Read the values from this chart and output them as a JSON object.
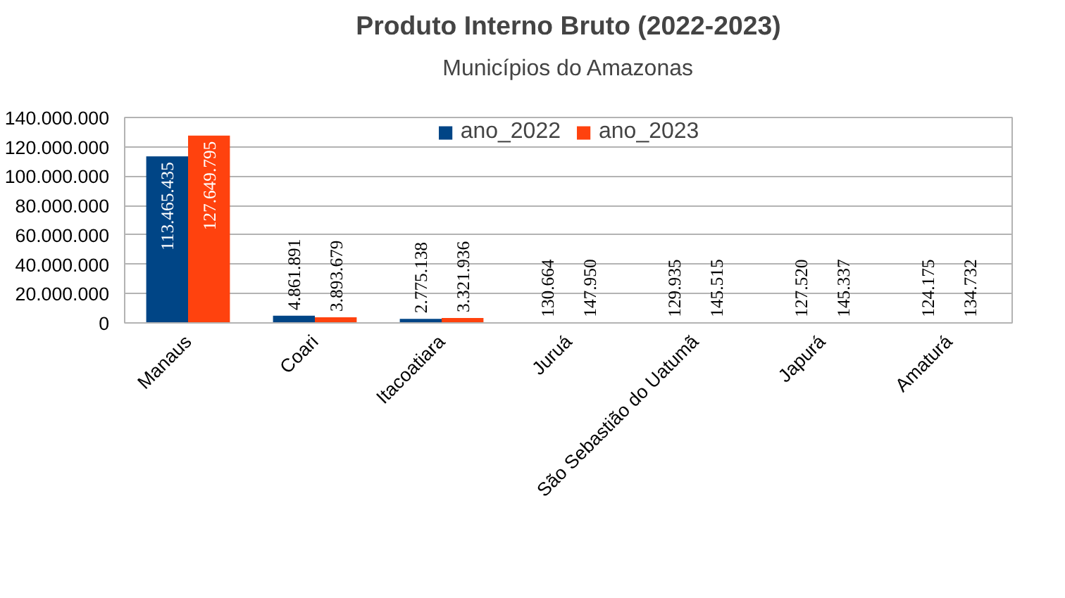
{
  "chart_data": {
    "type": "bar",
    "title": "Produto Interno Bruto (2022-2023)",
    "subtitle": "Municípios do Amazonas",
    "categories": [
      "Manaus",
      "Coari",
      "Itacoatiara",
      "Juruá",
      "São Sebastião do Uatumã",
      "Japurá",
      "Amaturá"
    ],
    "series": [
      {
        "name": "ano_2022",
        "color": "#004586",
        "values": [
          113465435,
          4861891,
          2775138,
          130664,
          129935,
          127520,
          124175
        ],
        "value_labels": [
          "113.465.435",
          "4.861.891",
          "2.775.138",
          "130.664",
          "129.935",
          "127.520",
          "124.175"
        ]
      },
      {
        "name": "ano_2023",
        "color": "#ff420e",
        "values": [
          127649795,
          3893679,
          3321936,
          147950,
          145515,
          145337,
          134732
        ],
        "value_labels": [
          "127.649.795",
          "3.893.679",
          "3.321.936",
          "147.950",
          "145.515",
          "145.337",
          "134.732"
        ]
      }
    ],
    "ylim": [
      0,
      140000000
    ],
    "yticks": [
      {
        "value": 0,
        "label": "0"
      },
      {
        "value": 20000000,
        "label": "20.000.000"
      },
      {
        "value": 40000000,
        "label": "40.000.000"
      },
      {
        "value": 60000000,
        "label": "60.000.000"
      },
      {
        "value": 80000000,
        "label": "80.000.000"
      },
      {
        "value": 100000000,
        "label": "100.000.000"
      },
      {
        "value": 120000000,
        "label": "120.000.000"
      },
      {
        "value": 140000000,
        "label": "140.000.000"
      }
    ],
    "grid": "y",
    "legend": "top"
  }
}
